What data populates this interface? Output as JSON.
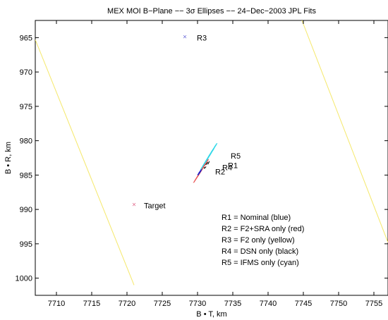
{
  "chart_data": {
    "type": "scatter",
    "title": "MEX MOI B−Plane −− 3σ Ellipses −− 24−Dec−2003 JPL Fits",
    "xlabel": "B • T, km",
    "ylabel": "B • R, km",
    "xlim": [
      7707,
      7757
    ],
    "ylim": [
      1002.5,
      962.5
    ],
    "y_axis_direction": "down",
    "grid": false,
    "x_ticks": [
      {
        "value": 7710,
        "label": "7710"
      },
      {
        "value": 7715,
        "label": "7715"
      },
      {
        "value": 7720,
        "label": "7720"
      },
      {
        "value": 7725,
        "label": "7725"
      },
      {
        "value": 7730,
        "label": "7730"
      },
      {
        "value": 7735,
        "label": "7735"
      },
      {
        "value": 7740,
        "label": "7740"
      },
      {
        "value": 7745,
        "label": "7745"
      },
      {
        "value": 7750,
        "label": "7750"
      },
      {
        "value": 7755,
        "label": "7755"
      }
    ],
    "y_ticks": [
      {
        "value": 965,
        "label": "965"
      },
      {
        "value": 970,
        "label": "970"
      },
      {
        "value": 975,
        "label": "975"
      },
      {
        "value": 980,
        "label": "980"
      },
      {
        "value": 985,
        "label": "985"
      },
      {
        "value": 990,
        "label": "990"
      },
      {
        "value": 995,
        "label": "995"
      },
      {
        "value": 1000,
        "label": "1000"
      }
    ],
    "points": [
      {
        "label": "R3",
        "x": 7728.2,
        "y": 964.8,
        "marker": "×",
        "color": "#6a6ad8"
      },
      {
        "label": "Target",
        "x": 7721.0,
        "y": 989.2,
        "marker": "×",
        "color": "#e06a8c"
      }
    ],
    "ellipses": [
      {
        "name": "R5",
        "color": "#30d8e8",
        "dash": "none",
        "cx": 7731.6,
        "cy": 982.3,
        "semi_major": 21.45,
        "semi_minor": 0.45,
        "angle_deg": -58.3
      },
      {
        "name": "R5",
        "color": "#30d8e8",
        "dash": "4 4",
        "cx": 7731.6,
        "cy": 982.3,
        "semi_major": 21.5,
        "semi_minor": 0.4,
        "angle_deg": -58.3
      },
      {
        "name": "R2",
        "color": "#e85050",
        "dash": "none",
        "cx": 7730.5,
        "cy": 984.4,
        "semi_major": 19.18,
        "semi_minor": 0.32,
        "angle_deg": -57.6
      },
      {
        "name": "R4",
        "color": "#000000",
        "dash": "5 4",
        "cx": 7731.3,
        "cy": 983.5,
        "semi_major": 6.0,
        "semi_minor": 0.9,
        "angle_deg": -55.0
      },
      {
        "name": "R1",
        "color": "#2020c8",
        "dash": "none",
        "cx": 7730.3,
        "cy": 984.6,
        "semi_major": 4.5,
        "semi_minor": 0.5,
        "angle_deg": -56.0
      }
    ],
    "lines": [
      {
        "name": "R3",
        "color": "#f5e86a",
        "x": [
          7707.0,
          7721.0
        ],
        "y": [
          965.3,
          1001.0
        ]
      },
      {
        "name": "R3",
        "color": "#f5e86a",
        "x": [
          7744.8,
          7757.0
        ],
        "y": [
          962.5,
          994.8
        ]
      }
    ],
    "annotations": [
      {
        "text": "R3",
        "x": 7729.9,
        "y": 965.0
      },
      {
        "text": "Target",
        "x": 7722.4,
        "y": 989.4
      },
      {
        "text": "R5",
        "x": 7734.7,
        "y": 982.2
      },
      {
        "text": "R1",
        "x": 7734.3,
        "y": 983.6
      },
      {
        "text": "R4",
        "x": 7733.5,
        "y": 983.9
      },
      {
        "text": "R2",
        "x": 7732.5,
        "y": 984.5
      }
    ],
    "legend_text": [
      "R1 = Nominal (blue)",
      "R2 = F2+SRA only (red)",
      "R3 = F2 only (yellow)",
      "R4 = DSN only (black)",
      "R5 = IFMS only (cyan)"
    ],
    "legend_placement": "lower-right (inside plot)"
  }
}
